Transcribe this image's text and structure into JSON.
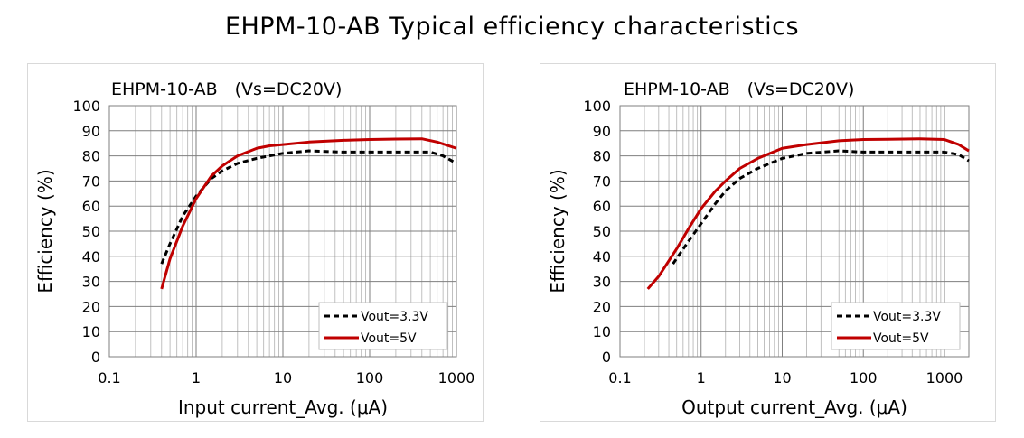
{
  "page_title": "EHPM-10-AB Typical efficiency characteristics",
  "chart_data": [
    {
      "type": "line",
      "title": "EHPM-10-AB　(Vs=DC20V)",
      "xlabel": "Input current_Avg. (μA)",
      "ylabel": "Efficiency (%)",
      "x_scale": "log",
      "xlim": [
        0.1,
        1000
      ],
      "ylim": [
        0,
        100
      ],
      "x_ticks": [
        "0.1",
        "1",
        "10",
        "100",
        "1000"
      ],
      "y_ticks": [
        "0",
        "10",
        "20",
        "30",
        "40",
        "50",
        "60",
        "70",
        "80",
        "90",
        "100"
      ],
      "grid": true,
      "legend_position": "bottom-right",
      "series": [
        {
          "name": "Vout=3.3V",
          "style": "dashed",
          "color": "#000000",
          "x": [
            0.4,
            0.5,
            0.7,
            1,
            1.5,
            2,
            3,
            5,
            7,
            10,
            20,
            50,
            100,
            200,
            500,
            700,
            1000
          ],
          "y": [
            37,
            45,
            56,
            64,
            71,
            74,
            77,
            79,
            80,
            81,
            82,
            81.5,
            81.5,
            81.5,
            81.5,
            80,
            77
          ]
        },
        {
          "name": "Vout=5V",
          "style": "solid",
          "color": "#c00000",
          "x": [
            0.4,
            0.5,
            0.7,
            1,
            1.5,
            2,
            3,
            5,
            7,
            10,
            20,
            50,
            100,
            200,
            400,
            600,
            1000
          ],
          "y": [
            27,
            39,
            52,
            63,
            72,
            76,
            80,
            83,
            84,
            84.5,
            85.5,
            86.2,
            86.5,
            86.7,
            86.8,
            85.5,
            83
          ]
        }
      ]
    },
    {
      "type": "line",
      "title": "EHPM-10-AB　(Vs=DC20V)",
      "xlabel": "Output current_Avg. (μA)",
      "ylabel": "Efficiency (%)",
      "x_scale": "log",
      "xlim": [
        0.1,
        2000
      ],
      "ylim": [
        0,
        100
      ],
      "x_ticks": [
        "0.1",
        "1",
        "10",
        "100",
        "1000"
      ],
      "y_ticks": [
        "0",
        "10",
        "20",
        "30",
        "40",
        "50",
        "60",
        "70",
        "80",
        "90",
        "100"
      ],
      "grid": true,
      "legend_position": "bottom-right",
      "series": [
        {
          "name": "Vout=3.3V",
          "style": "dashed",
          "color": "#000000",
          "x": [
            0.45,
            0.7,
            1,
            1.5,
            2,
            3,
            5,
            10,
            20,
            50,
            100,
            200,
            500,
            1000,
            1500,
            2000
          ],
          "y": [
            37,
            46,
            53,
            61,
            66,
            71,
            75,
            79,
            81,
            82,
            81.5,
            81.5,
            81.5,
            81.5,
            80.5,
            78
          ]
        },
        {
          "name": "Vout=5V",
          "style": "solid",
          "color": "#c00000",
          "x": [
            0.22,
            0.3,
            0.5,
            0.7,
            1,
            1.5,
            2,
            3,
            5,
            10,
            20,
            50,
            100,
            200,
            500,
            1000,
            1500,
            2000
          ],
          "y": [
            27,
            32,
            43,
            51,
            59,
            66,
            70,
            75,
            79,
            83,
            84.5,
            86,
            86.5,
            86.6,
            86.8,
            86.5,
            84.5,
            82
          ]
        }
      ]
    }
  ]
}
